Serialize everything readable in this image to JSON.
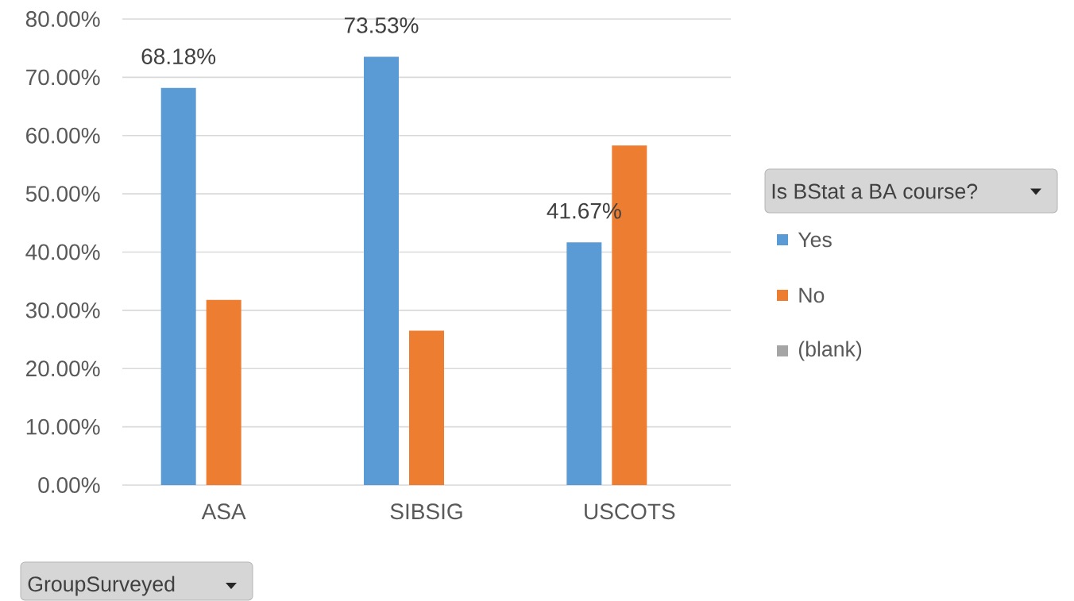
{
  "chart_data": {
    "type": "bar",
    "categories": [
      "ASA",
      "SIBSIG",
      "USCOTS"
    ],
    "series": [
      {
        "name": "Yes",
        "color": "#5b9bd5",
        "values": [
          68.18,
          73.53,
          41.67
        ],
        "value_labels": [
          "68.18%",
          "73.53%",
          "41.67%"
        ]
      },
      {
        "name": "No",
        "color": "#ed7d31",
        "values": [
          31.8,
          26.5,
          58.3
        ]
      },
      {
        "name": "(blank)",
        "color": "#a5a5a5",
        "values": [
          null,
          null,
          null
        ]
      }
    ],
    "ylim": [
      0,
      80
    ],
    "yticks": [
      {
        "value": 0,
        "label": "0.00%"
      },
      {
        "value": 10,
        "label": "10.00%"
      },
      {
        "value": 20,
        "label": "20.00%"
      },
      {
        "value": 30,
        "label": "30.00%"
      },
      {
        "value": 40,
        "label": "40.00%"
      },
      {
        "value": 50,
        "label": "50.00%"
      },
      {
        "value": 60,
        "label": "60.00%"
      },
      {
        "value": 70,
        "label": "70.00%"
      },
      {
        "value": 80,
        "label": "80.00%"
      }
    ],
    "grid": "y",
    "legend": "right",
    "legend_title": "Is BStat a BA course?",
    "xlabel": "GroupSurveyed"
  }
}
